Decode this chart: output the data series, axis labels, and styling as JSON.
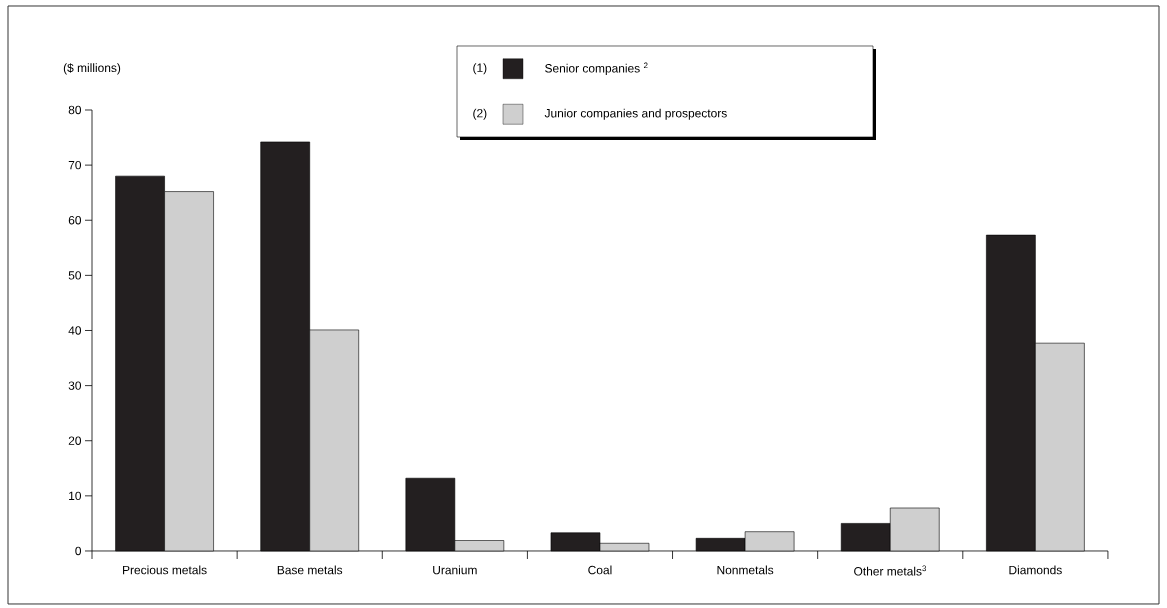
{
  "chart_data": {
    "type": "bar",
    "ylabel": "($ millions)",
    "categories": [
      "Precious metals",
      "Base metals",
      "Uranium",
      "Coal",
      "Nonmetals",
      "Other metals$^{3}$",
      "Diamonds"
    ],
    "series": [
      {
        "name": "Senior companies $^{2}$",
        "color": "#231f20",
        "values": [
          68,
          74.2,
          13.2,
          3.3,
          2.3,
          5,
          57.3
        ]
      },
      {
        "name": "Junior companies and prospectors",
        "color": "#cfcfcf",
        "values": [
          65.2,
          40.1,
          1.9,
          1.4,
          3.5,
          7.8,
          37.7
        ]
      }
    ],
    "ylim": [
      0,
      80
    ],
    "yticks": [
      0,
      10,
      20,
      30,
      40,
      50,
      60,
      70,
      80
    ],
    "legend": "top",
    "annotations": [
      "(1)",
      "(2)"
    ]
  }
}
